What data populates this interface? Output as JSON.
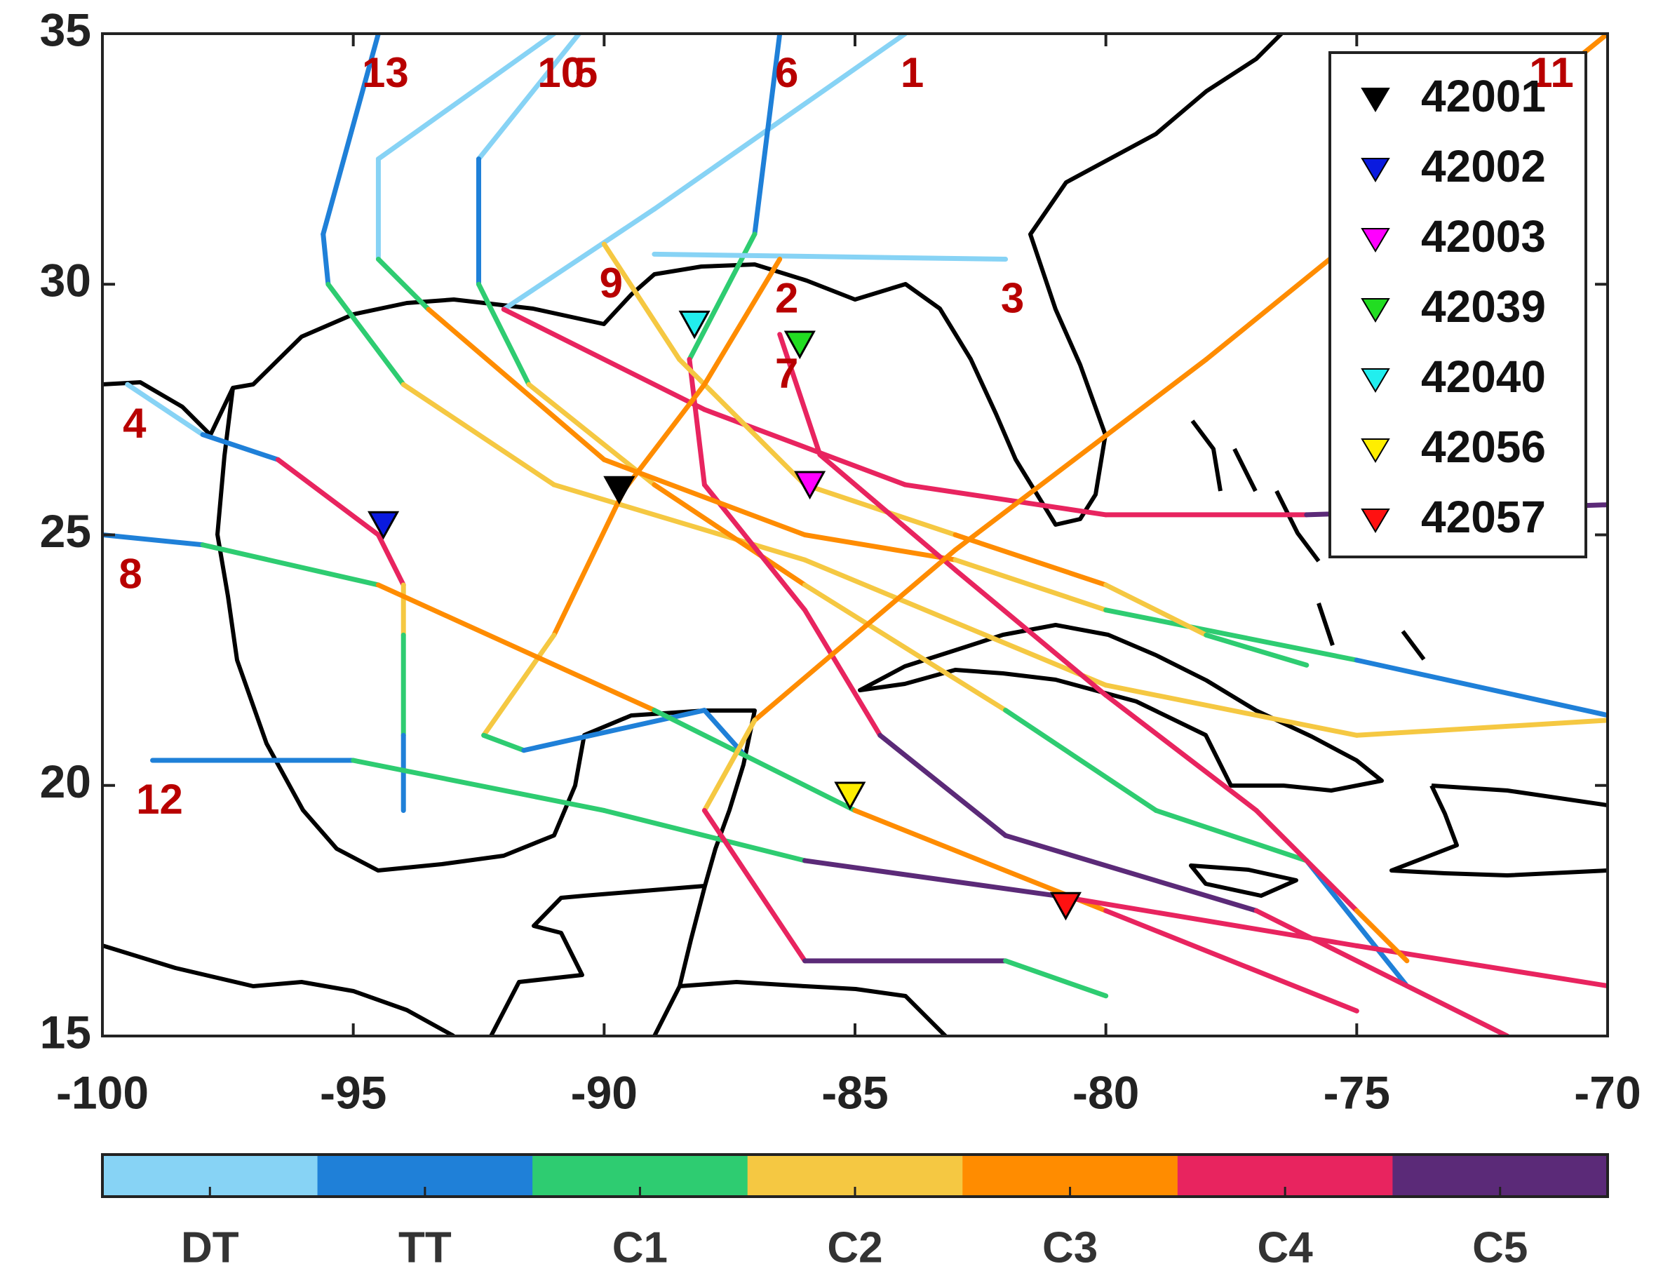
{
  "chart_data": {
    "type": "map",
    "xlim": [
      -100,
      -70
    ],
    "ylim": [
      15,
      35
    ],
    "xticks": [
      -100,
      -95,
      -90,
      -85,
      -80,
      -75,
      -70
    ],
    "yticks": [
      15,
      20,
      25,
      30,
      35
    ],
    "colorbar": {
      "categories": [
        "DT",
        "TT",
        "C1",
        "C2",
        "C3",
        "C4",
        "C5"
      ],
      "colors": [
        "#87d3f5",
        "#1f80d8",
        "#2ecc71",
        "#f5c842",
        "#ff8c00",
        "#e8245f",
        "#5b2a78"
      ]
    },
    "tracks": [
      {
        "name": "13",
        "points": [
          [
            -94.5,
            35,
            "TT"
          ],
          [
            -95.6,
            31,
            "TT"
          ],
          [
            -95.5,
            30,
            "C1"
          ],
          [
            -94,
            28,
            "C2"
          ],
          [
            -91,
            26,
            "C2"
          ],
          [
            -86,
            24.5,
            "C2"
          ],
          [
            -80,
            22,
            "C2"
          ],
          [
            -75,
            21,
            "C2"
          ],
          [
            -70,
            21.3,
            "C4"
          ]
        ]
      },
      {
        "name": "5",
        "points": [
          [
            -90.5,
            35,
            "DT"
          ],
          [
            -92.5,
            32.5,
            "TT"
          ],
          [
            -92.5,
            30,
            "C1"
          ],
          [
            -91.5,
            28,
            "C2"
          ],
          [
            -89,
            26,
            "C3"
          ],
          [
            -86,
            24,
            "C2"
          ],
          [
            -82,
            21.5,
            "C1"
          ],
          [
            -79,
            19.5,
            "C1"
          ],
          [
            -76,
            18.5,
            "TT"
          ],
          [
            -74,
            16,
            "DT"
          ],
          [
            -72,
            15,
            "DT"
          ]
        ]
      },
      {
        "name": "1",
        "points": [
          [
            -84,
            35,
            "DT"
          ],
          [
            -89,
            31.5,
            "DT"
          ],
          [
            -92,
            29.5,
            "C4"
          ],
          [
            -88,
            27.5,
            "C4"
          ],
          [
            -84,
            26,
            "C4"
          ],
          [
            -80,
            25.4,
            "C4"
          ],
          [
            -76,
            25.4,
            "C5"
          ],
          [
            -70,
            25.6,
            "C3"
          ]
        ]
      },
      {
        "name": "6",
        "points": [
          [
            -86.5,
            35,
            "TT"
          ],
          [
            -87,
            31,
            "C1"
          ],
          [
            -88.3,
            28.5,
            "C4"
          ],
          [
            -88,
            26,
            "C4"
          ],
          [
            -86,
            23.5,
            "C4"
          ],
          [
            -84.5,
            21,
            "C5"
          ],
          [
            -82,
            19,
            "C5"
          ],
          [
            -77,
            17.5,
            "C4"
          ],
          [
            -72,
            15,
            "C4"
          ]
        ]
      },
      {
        "name": "10",
        "points": [
          [
            -91,
            35,
            "DT"
          ],
          [
            -94.5,
            32.5,
            "DT"
          ],
          [
            -94.5,
            30.5,
            "C1"
          ],
          [
            -93.5,
            29.5,
            "C3"
          ],
          [
            -90,
            26.5,
            "C3"
          ],
          [
            -86,
            25,
            "C3"
          ],
          [
            -83,
            24.5,
            "C2"
          ],
          [
            -80,
            23.5,
            "C1"
          ],
          [
            -75,
            22.5,
            "TT"
          ],
          [
            -70,
            21.4,
            "DT"
          ]
        ]
      },
      {
        "name": "9",
        "points": [
          [
            -90,
            30.8,
            "C2"
          ],
          [
            -88.5,
            28.5,
            "C2"
          ],
          [
            -86,
            26,
            "C2"
          ],
          [
            -83,
            25,
            "C3"
          ],
          [
            -80,
            24,
            "C2"
          ],
          [
            -78,
            23,
            "C1"
          ],
          [
            -76,
            22.4,
            "TT"
          ]
        ]
      },
      {
        "name": "3",
        "points": [
          [
            -82,
            30.5,
            "DT"
          ],
          [
            -89,
            30.6,
            "DT"
          ]
        ]
      },
      {
        "name": "2",
        "points": [
          [
            -86.5,
            30.5,
            "C3"
          ],
          [
            -88,
            28,
            "C3"
          ],
          [
            -89.6,
            25.9,
            "C3"
          ],
          [
            -91,
            23,
            "C2"
          ],
          [
            -92.4,
            21,
            "C1"
          ],
          [
            -91.6,
            20.7,
            "TT"
          ],
          [
            -88,
            21.5,
            "TT"
          ],
          [
            -87.2,
            20.6,
            "DT"
          ]
        ]
      },
      {
        "name": "4",
        "points": [
          [
            -99.5,
            28,
            "DT"
          ],
          [
            -98,
            27,
            "TT"
          ],
          [
            -96.5,
            26.5,
            "C4"
          ],
          [
            -94.5,
            25,
            "C4"
          ],
          [
            -94,
            24,
            "C2"
          ],
          [
            -94,
            23,
            "C1"
          ],
          [
            -94,
            21,
            "TT"
          ],
          [
            -94,
            19.5,
            "DT"
          ]
        ]
      },
      {
        "name": "8",
        "points": [
          [
            -100,
            25,
            "TT"
          ],
          [
            -98,
            24.8,
            "C1"
          ],
          [
            -94.5,
            24,
            "C3"
          ],
          [
            -89,
            21.5,
            "C1"
          ],
          [
            -85,
            19.5,
            "C3"
          ],
          [
            -80,
            17.5,
            "C4"
          ],
          [
            -75,
            15.5,
            "C4"
          ]
        ]
      },
      {
        "name": "12",
        "points": [
          [
            -99,
            20.5,
            "TT"
          ],
          [
            -95,
            20.5,
            "C1"
          ],
          [
            -90,
            19.5,
            "C1"
          ],
          [
            -86,
            18.5,
            "C5"
          ],
          [
            -81,
            17.8,
            "C4"
          ],
          [
            -75,
            16.8,
            "C4"
          ],
          [
            -70,
            16,
            "C4"
          ]
        ]
      },
      {
        "name": "7",
        "points": [
          [
            -86.5,
            29,
            "C4"
          ],
          [
            -85.7,
            26.6,
            "C4"
          ],
          [
            -83,
            24.3,
            "C4"
          ],
          [
            -80,
            21.8,
            "C4"
          ],
          [
            -77,
            19.5,
            "C4"
          ],
          [
            -75,
            17.5,
            "C3"
          ],
          [
            -74,
            16.5,
            "C2"
          ]
        ]
      },
      {
        "name": "11",
        "points": [
          [
            -70,
            35,
            "C3"
          ],
          [
            -78,
            28.5,
            "C3"
          ],
          [
            -83,
            24.7,
            "C3"
          ],
          [
            -87,
            21.3,
            "C2"
          ],
          [
            -88,
            19.5,
            "C4"
          ],
          [
            -86,
            16.5,
            "C5"
          ],
          [
            -82,
            16.5,
            "C1"
          ],
          [
            -80,
            15.8,
            "C1"
          ]
        ]
      }
    ],
    "buoys": [
      {
        "name": "42001",
        "color": "#000000",
        "x": -89.7,
        "y": 25.9
      },
      {
        "name": "42002",
        "color": "#0a1adf",
        "x": -94.4,
        "y": 25.2
      },
      {
        "name": "42003",
        "color": "#ff00ff",
        "x": -85.9,
        "y": 26.0
      },
      {
        "name": "42039",
        "color": "#22dd22",
        "x": -86.1,
        "y": 28.8
      },
      {
        "name": "42040",
        "color": "#22eeee",
        "x": -88.2,
        "y": 29.2
      },
      {
        "name": "42056",
        "color": "#ffee00",
        "x": -85.1,
        "y": 19.8
      },
      {
        "name": "42057",
        "color": "#ff1111",
        "x": -80.8,
        "y": 17.6
      }
    ]
  }
}
